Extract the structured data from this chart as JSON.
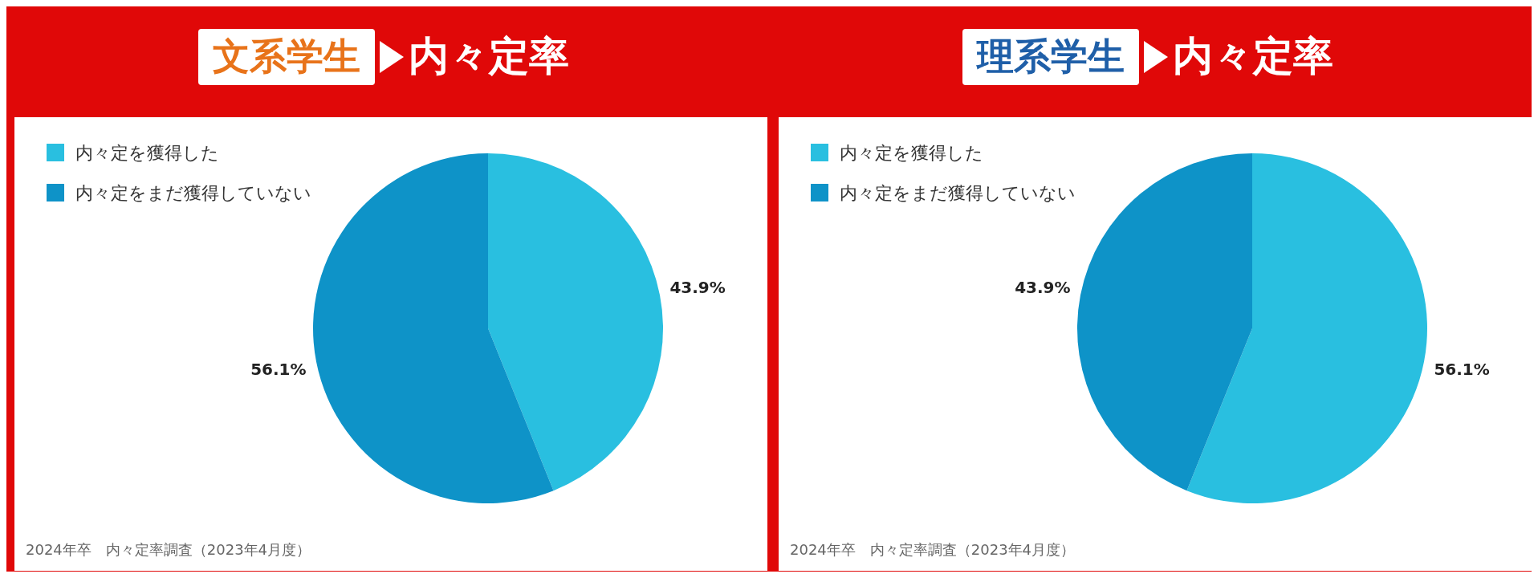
{
  "chart_data": [
    {
      "type": "pie",
      "title": "文系学生",
      "subtitle": "内々定率",
      "categories": [
        "内々定を獲得した",
        "内々定をまだ獲得していない"
      ],
      "values": [
        43.9,
        56.1
      ],
      "value_labels": [
        "43.9%",
        "56.1%"
      ],
      "colors": [
        "#29bfe0",
        "#0e93c8"
      ],
      "legend": "top left",
      "annotations": [
        "2024年卒　内々定率調査（2023年4月度）"
      ]
    },
    {
      "type": "pie",
      "title": "理系学生",
      "subtitle": "内々定率",
      "categories": [
        "内々定を獲得した",
        "内々定をまだ獲得していない"
      ],
      "values": [
        56.1,
        43.9
      ],
      "value_labels": [
        "56.1%",
        "43.9%"
      ],
      "colors": [
        "#29bfe0",
        "#0e93c8"
      ],
      "legend": "top left",
      "annotations": [
        "2024年卒　内々定率調査（2023年4月度）"
      ]
    }
  ]
}
